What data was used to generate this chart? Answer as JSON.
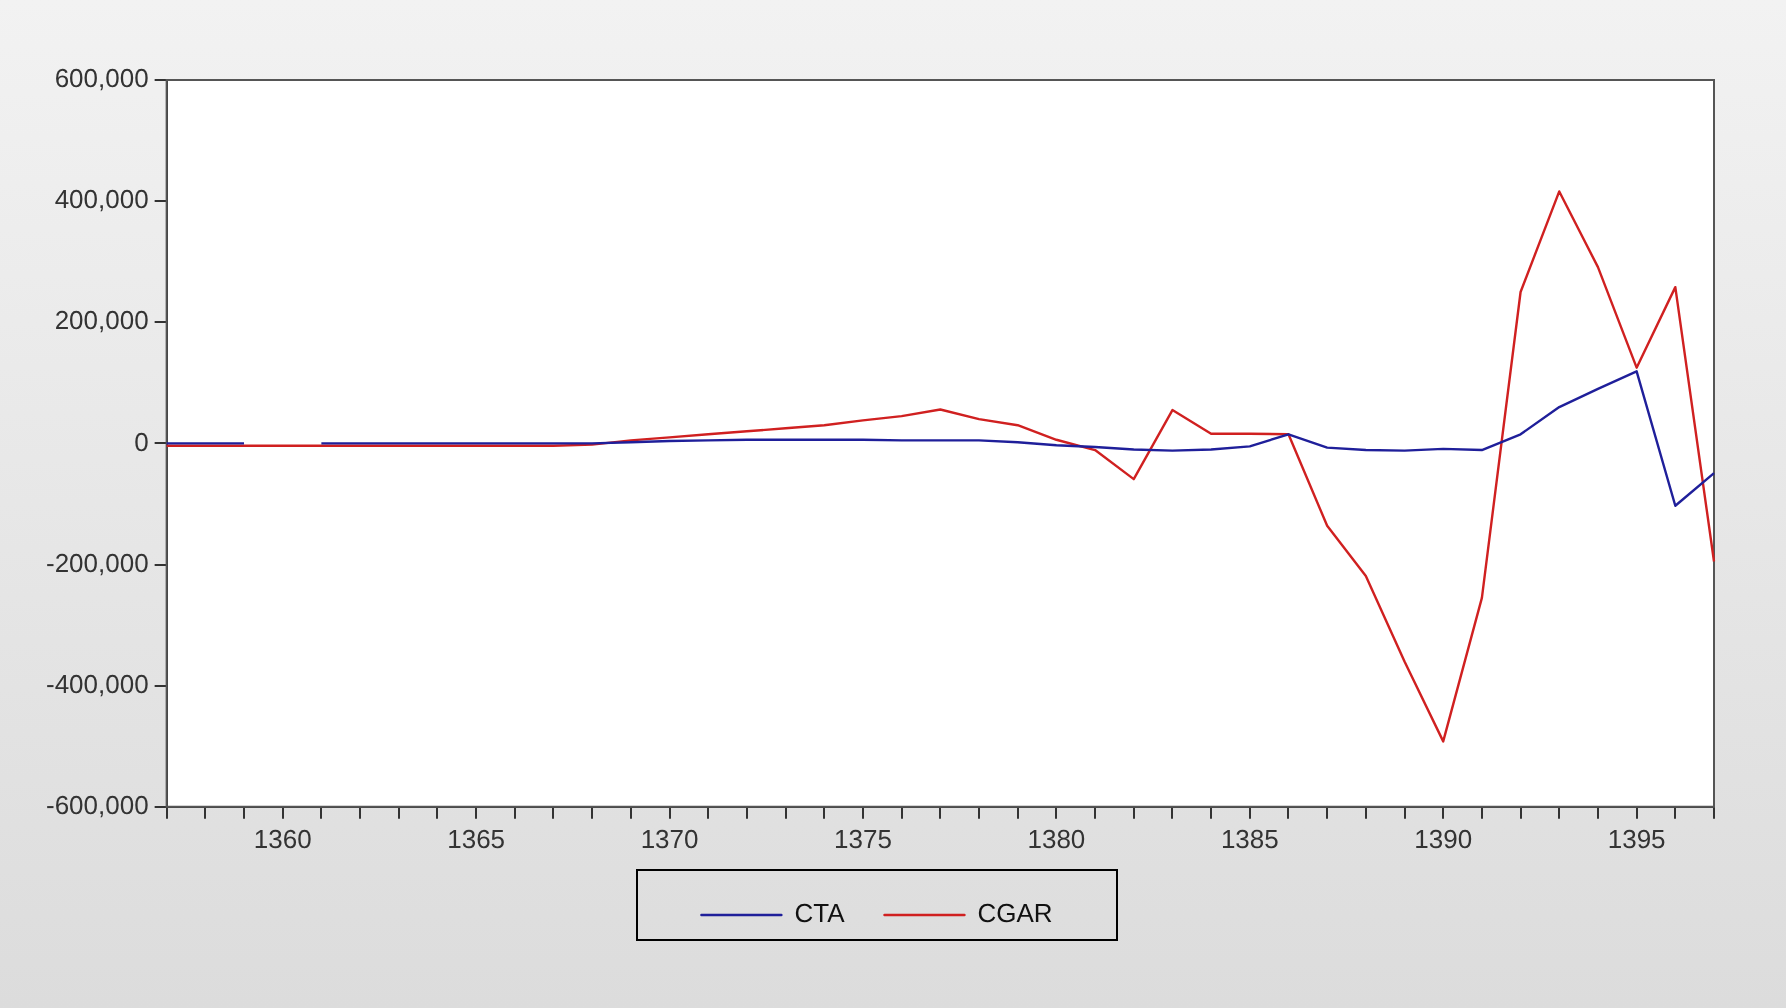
{
  "chart_data": {
    "type": "line",
    "x": [
      1357,
      1358,
      1359,
      1360,
      1361,
      1362,
      1363,
      1364,
      1365,
      1366,
      1367,
      1368,
      1369,
      1370,
      1371,
      1372,
      1373,
      1374,
      1375,
      1376,
      1377,
      1378,
      1379,
      1380,
      1381,
      1382,
      1383,
      1384,
      1385,
      1386,
      1387,
      1388,
      1389,
      1390,
      1391,
      1392,
      1393,
      1394,
      1395,
      1396,
      1397
    ],
    "series": [
      {
        "name": "CTA",
        "color": "#1f1f9a",
        "values": [
          0,
          0,
          0,
          null,
          0,
          0,
          0,
          0,
          0,
          0,
          0,
          0,
          2000,
          4000,
          5000,
          6000,
          6000,
          6000,
          6000,
          5000,
          5000,
          5000,
          2000,
          -3000,
          -6000,
          -10000,
          -12000,
          -10000,
          -5000,
          15000,
          -7000,
          -11000,
          -12000,
          -9000,
          -11000,
          15000,
          60000,
          90000,
          119000,
          -103000,
          -49000
        ]
      },
      {
        "name": "CGAR",
        "color": "#d02020",
        "values": [
          -4000,
          -4000,
          -4000,
          -4000,
          -4000,
          -4000,
          -4000,
          -4000,
          -4000,
          -4000,
          -4000,
          -2000,
          5000,
          10000,
          15000,
          20000,
          25000,
          30000,
          38000,
          45000,
          56000,
          40000,
          30000,
          6000,
          -11000,
          -59000,
          55000,
          16000,
          16000,
          15000,
          -136000,
          -219000,
          -360000,
          -492000,
          -255000,
          250000,
          416000,
          291000,
          125000,
          258000,
          -195000
        ]
      }
    ],
    "xlim": [
      1357,
      1397
    ],
    "xticks": [
      {
        "value": 1357,
        "label": null
      },
      {
        "value": 1358,
        "label": null
      },
      {
        "value": 1359,
        "label": null
      },
      1360,
      {
        "value": 1361,
        "label": null
      },
      {
        "value": 1362,
        "label": null
      },
      {
        "value": 1363,
        "label": null
      },
      {
        "value": 1364,
        "label": null
      },
      1365,
      {
        "value": 1366,
        "label": null
      },
      {
        "value": 1367,
        "label": null
      },
      {
        "value": 1368,
        "label": null
      },
      {
        "value": 1369,
        "label": null
      },
      1370,
      {
        "value": 1371,
        "label": null
      },
      {
        "value": 1372,
        "label": null
      },
      {
        "value": 1373,
        "label": null
      },
      {
        "value": 1374,
        "label": null
      },
      1375,
      {
        "value": 1376,
        "label": null
      },
      {
        "value": 1377,
        "label": null
      },
      {
        "value": 1378,
        "label": null
      },
      {
        "value": 1379,
        "label": null
      },
      1380,
      {
        "value": 1381,
        "label": null
      },
      {
        "value": 1382,
        "label": null
      },
      {
        "value": 1383,
        "label": null
      },
      {
        "value": 1384,
        "label": null
      },
      1385,
      {
        "value": 1386,
        "label": null
      },
      {
        "value": 1387,
        "label": null
      },
      {
        "value": 1388,
        "label": null
      },
      {
        "value": 1389,
        "label": null
      },
      1390,
      {
        "value": 1391,
        "label": null
      },
      {
        "value": 1392,
        "label": null
      },
      {
        "value": 1393,
        "label": null
      },
      {
        "value": 1394,
        "label": null
      },
      1395,
      {
        "value": 1396,
        "label": null
      },
      {
        "value": 1397,
        "label": null
      }
    ],
    "ylim": [
      -600000,
      600000
    ],
    "yticks": [
      {
        "value": -600000,
        "label": "-600,000"
      },
      {
        "value": -400000,
        "label": "-400,000"
      },
      {
        "value": -200000,
        "label": "-200,000"
      },
      0,
      {
        "value": 200000,
        "label": "200,000"
      },
      {
        "value": 400000,
        "label": "400,000"
      },
      {
        "value": 600000,
        "label": "600,000"
      }
    ],
    "grid": false,
    "legend": "bottom",
    "marker": "none",
    "line_style": "solid"
  }
}
